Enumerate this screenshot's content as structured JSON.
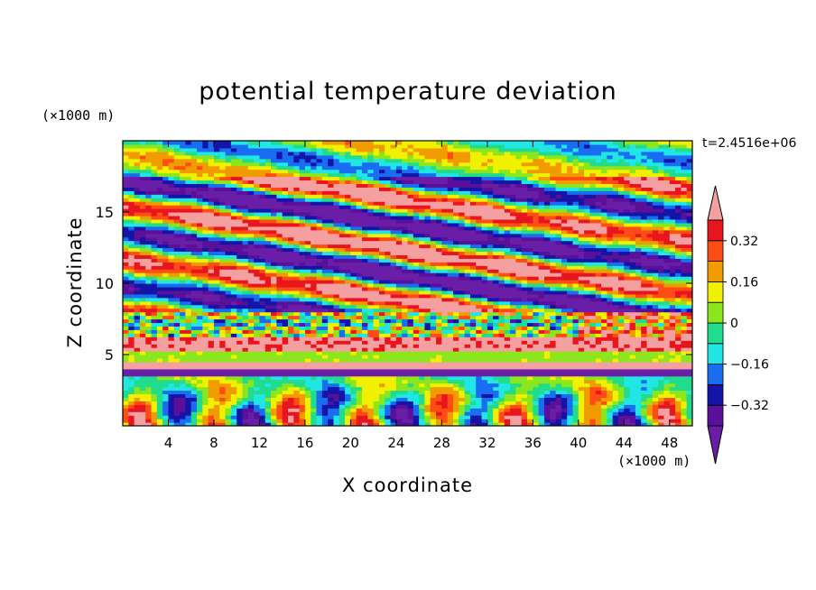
{
  "chart_data": {
    "type": "heatmap",
    "title": "potential temperature deviation",
    "xlabel": "X coordinate",
    "ylabel": "Z coordinate",
    "x_unit": "(×1000 m)",
    "y_unit": "(×1000 m)",
    "time_label": "t=2.4516e+06",
    "xlim": [
      0,
      50
    ],
    "ylim": [
      0,
      20
    ],
    "xticks": [
      4,
      8,
      12,
      16,
      20,
      24,
      28,
      32,
      36,
      40,
      44,
      48
    ],
    "yticks": [
      5,
      10,
      15
    ],
    "colorbar": {
      "levels": [
        -0.4,
        -0.32,
        -0.24,
        -0.16,
        -0.08,
        0,
        0.08,
        0.16,
        0.24,
        0.32,
        0.4
      ],
      "tick_values": [
        0.32,
        0.16,
        0,
        -0.16,
        -0.32
      ],
      "tick_labels": [
        "0.32",
        "0.16",
        "0",
        "−0.16",
        "−0.32"
      ],
      "colors": [
        "#6a1ea8",
        "#5a1098",
        "#1414a8",
        "#1a6cf0",
        "#20e6e6",
        "#20dc8c",
        "#8ce61e",
        "#f0f000",
        "#f09c00",
        "#ff4c14",
        "#e8141e",
        "#f4a0a0"
      ],
      "extend": "both"
    },
    "grid": false,
    "legend": "colorbar-right"
  }
}
